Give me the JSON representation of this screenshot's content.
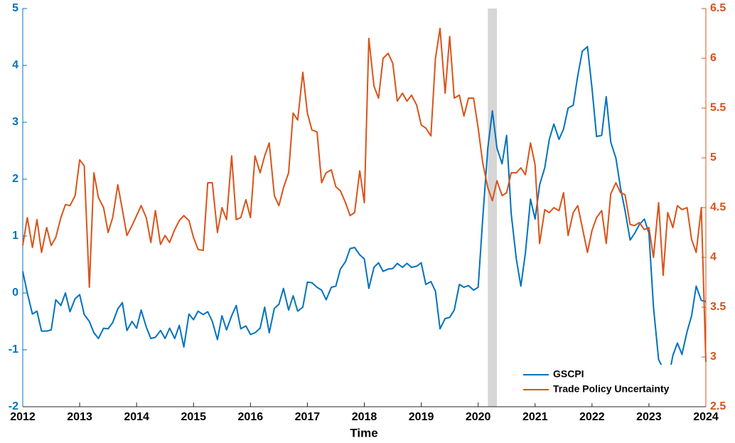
{
  "chart_data": {
    "type": "line",
    "x_label": "Time",
    "x": [
      2012,
      2012.08,
      2012.17,
      2012.25,
      2012.33,
      2012.42,
      2012.5,
      2012.58,
      2012.67,
      2012.75,
      2012.83,
      2012.92,
      2013,
      2013.08,
      2013.17,
      2013.25,
      2013.33,
      2013.42,
      2013.5,
      2013.58,
      2013.67,
      2013.75,
      2013.83,
      2013.92,
      2014,
      2014.08,
      2014.17,
      2014.25,
      2014.33,
      2014.42,
      2014.5,
      2014.58,
      2014.67,
      2014.75,
      2014.83,
      2014.92,
      2015,
      2015.08,
      2015.17,
      2015.25,
      2015.33,
      2015.42,
      2015.5,
      2015.58,
      2015.67,
      2015.75,
      2015.83,
      2015.92,
      2016,
      2016.08,
      2016.17,
      2016.25,
      2016.33,
      2016.42,
      2016.5,
      2016.58,
      2016.67,
      2016.75,
      2016.83,
      2016.92,
      2017,
      2017.08,
      2017.17,
      2017.25,
      2017.33,
      2017.42,
      2017.5,
      2017.58,
      2017.67,
      2017.75,
      2017.83,
      2017.92,
      2018,
      2018.08,
      2018.17,
      2018.25,
      2018.33,
      2018.42,
      2018.5,
      2018.58,
      2018.67,
      2018.75,
      2018.83,
      2018.92,
      2019,
      2019.08,
      2019.17,
      2019.25,
      2019.33,
      2019.42,
      2019.5,
      2019.58,
      2019.67,
      2019.75,
      2019.83,
      2019.92,
      2020,
      2020.08,
      2020.17,
      2020.25,
      2020.33,
      2020.42,
      2020.5,
      2020.58,
      2020.67,
      2020.75,
      2020.83,
      2020.92,
      2021,
      2021.08,
      2021.17,
      2021.25,
      2021.33,
      2021.42,
      2021.5,
      2021.58,
      2021.67,
      2021.75,
      2021.83,
      2021.92,
      2022,
      2022.08,
      2022.17,
      2022.25,
      2022.33,
      2022.42,
      2022.5,
      2022.58,
      2022.67,
      2022.75,
      2022.83,
      2022.92,
      2023,
      2023.08,
      2023.17,
      2023.25,
      2023.33,
      2023.42,
      2023.5,
      2023.58,
      2023.67,
      2023.75,
      2023.83,
      2023.92,
      2024
    ],
    "series": [
      {
        "name": "GSCPI",
        "color": "#0072BD",
        "axis": "y",
        "values": [
          0.38,
          0.0,
          -0.37,
          -0.32,
          -0.67,
          -0.67,
          -0.65,
          -0.12,
          -0.22,
          0.0,
          -0.33,
          -0.1,
          -0.03,
          -0.38,
          -0.5,
          -0.7,
          -0.8,
          -0.62,
          -0.63,
          -0.52,
          -0.28,
          -0.17,
          -0.66,
          -0.5,
          -0.62,
          -0.3,
          -0.6,
          -0.8,
          -0.78,
          -0.66,
          -0.8,
          -0.62,
          -0.8,
          -0.57,
          -0.95,
          -0.37,
          -0.47,
          -0.32,
          -0.38,
          -0.33,
          -0.5,
          -0.82,
          -0.4,
          -0.65,
          -0.4,
          -0.22,
          -0.63,
          -0.58,
          -0.73,
          -0.7,
          -0.62,
          -0.25,
          -0.7,
          -0.27,
          -0.2,
          0.08,
          -0.3,
          -0.05,
          -0.32,
          -0.25,
          0.19,
          0.18,
          0.1,
          0.05,
          -0.12,
          0.1,
          0.12,
          0.42,
          0.55,
          0.78,
          0.8,
          0.67,
          0.6,
          0.08,
          0.45,
          0.53,
          0.38,
          0.42,
          0.43,
          0.52,
          0.45,
          0.52,
          0.45,
          0.47,
          0.53,
          0.15,
          0.2,
          0.03,
          -0.63,
          -0.45,
          -0.43,
          -0.3,
          0.15,
          0.1,
          0.13,
          0.05,
          0.1,
          1.3,
          2.55,
          3.2,
          2.55,
          2.27,
          2.77,
          1.4,
          0.6,
          0.12,
          0.7,
          1.65,
          1.3,
          1.9,
          2.2,
          2.7,
          2.97,
          2.7,
          2.88,
          3.25,
          3.3,
          3.82,
          4.25,
          4.33,
          3.6,
          2.75,
          2.77,
          3.45,
          2.65,
          2.37,
          1.85,
          1.45,
          0.93,
          1.05,
          1.2,
          1.3,
          1.05,
          -0.25,
          -1.17,
          -1.33,
          -1.58,
          -1.1,
          -0.88,
          -1.08,
          -0.68,
          -0.4,
          0.12,
          -0.13,
          -0.15
        ]
      },
      {
        "name": "Trade Policy Uncertainty",
        "color": "#D95319",
        "axis": "y2",
        "values": [
          4.12,
          4.4,
          4.1,
          4.38,
          4.05,
          4.3,
          4.12,
          4.2,
          4.4,
          4.53,
          4.52,
          4.62,
          4.98,
          4.92,
          3.7,
          4.85,
          4.6,
          4.5,
          4.25,
          4.4,
          4.73,
          4.48,
          4.22,
          4.32,
          4.42,
          4.52,
          4.4,
          4.15,
          4.47,
          4.13,
          4.22,
          4.15,
          4.28,
          4.37,
          4.42,
          4.37,
          4.2,
          4.08,
          4.07,
          4.75,
          4.75,
          4.25,
          4.5,
          4.38,
          5.02,
          4.38,
          4.4,
          4.58,
          4.4,
          5.02,
          4.85,
          5.02,
          5.15,
          4.62,
          4.52,
          4.7,
          4.85,
          5.45,
          5.38,
          5.86,
          5.45,
          5.28,
          5.26,
          4.75,
          4.85,
          4.88,
          4.71,
          4.67,
          4.55,
          4.42,
          4.45,
          4.87,
          4.55,
          6.2,
          5.72,
          5.6,
          6.0,
          6.05,
          5.95,
          5.57,
          5.65,
          5.57,
          5.63,
          5.53,
          5.33,
          5.3,
          5.22,
          6.0,
          6.3,
          5.65,
          6.22,
          5.6,
          5.63,
          5.42,
          5.6,
          5.6,
          5.3,
          4.95,
          4.7,
          4.57,
          4.77,
          4.62,
          4.65,
          4.85,
          4.85,
          4.9,
          4.83,
          5.15,
          4.93,
          4.14,
          4.48,
          4.45,
          4.5,
          4.47,
          4.65,
          4.22,
          4.45,
          4.52,
          4.3,
          4.05,
          4.27,
          4.4,
          4.47,
          4.14,
          4.64,
          4.75,
          4.65,
          4.63,
          4.33,
          4.32,
          4.35,
          4.28,
          4.3,
          4.0,
          4.55,
          3.82,
          4.45,
          4.3,
          4.52,
          4.48,
          4.5,
          4.18,
          4.05,
          4.5,
          2.95
        ]
      }
    ],
    "recession": [
      2020.17,
      2020.33
    ],
    "xlim": [
      2012,
      2024
    ],
    "xticks": [
      2012,
      2013,
      2014,
      2015,
      2016,
      2017,
      2018,
      2019,
      2020,
      2021,
      2022,
      2023,
      2024
    ],
    "ylim": [
      -2,
      5
    ],
    "yticks": [
      -2,
      -1,
      0,
      1,
      2,
      3,
      4,
      5
    ],
    "y2lim": [
      2.5,
      6.5
    ],
    "y2ticks": [
      2.5,
      3,
      3.5,
      4,
      4.5,
      5,
      5.5,
      6,
      6.5
    ],
    "legend": "lower right"
  }
}
